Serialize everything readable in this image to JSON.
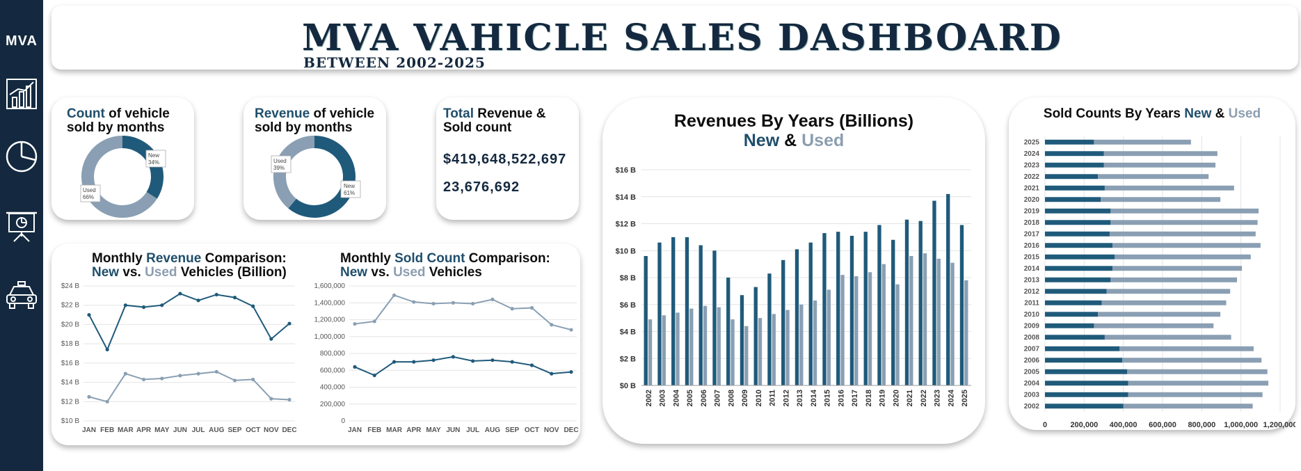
{
  "sidebar": {
    "logo": "MVA",
    "icons": [
      "bar-chart-icon",
      "pie-chart-icon",
      "presentation-icon",
      "taxi-icon"
    ]
  },
  "header": {
    "title": "MVA VAHICLE SALES DASHBOARD",
    "subtitle": "BETWEEN 2002-2025"
  },
  "kpi_count": {
    "title_a": "Count",
    "title_b": " of vehicle",
    "title_c": "sold by months",
    "new_label": "New",
    "new_pct": "34%",
    "used_label": "Used",
    "used_pct": "66%",
    "new_value": 34,
    "used_value": 66
  },
  "kpi_revenue": {
    "title_a": "Revenue",
    "title_b": " of vehicle",
    "title_c": "sold by months",
    "new_label": "New",
    "new_pct": "61%",
    "used_label": "Used",
    "used_pct": "39%",
    "new_value": 61,
    "used_value": 39
  },
  "kpi_total": {
    "title_a": "Total",
    "title_b": " Revenue &",
    "title_c": "Sold count",
    "revenue": "$419,648,522,697",
    "count": "23,676,692"
  },
  "colors": {
    "new": "#1f5a7a",
    "used": "#8a9fb3"
  },
  "chart_data": [
    {
      "id": "monthly_revenue",
      "type": "line",
      "title_a": "Monthly ",
      "title_b": "Revenue",
      "title_c": " Comparison:",
      "title_d": "New",
      "title_e": " vs. ",
      "title_f": "Used",
      "title_g": " Vehicles (Billion)",
      "categories": [
        "JAN",
        "FEB",
        "MAR",
        "APR",
        "MAY",
        "JUN",
        "JUL",
        "AUG",
        "SEP",
        "OCT",
        "NOV",
        "DEC"
      ],
      "series": [
        {
          "name": "New",
          "values": [
            21.0,
            17.4,
            22.0,
            21.8,
            22.0,
            23.2,
            22.5,
            23.1,
            22.8,
            21.9,
            18.5,
            20.1
          ]
        },
        {
          "name": "Used",
          "values": [
            12.5,
            12.0,
            14.9,
            14.3,
            14.4,
            14.7,
            14.9,
            15.1,
            14.2,
            14.3,
            12.3,
            12.2
          ]
        }
      ],
      "ylim": [
        10,
        24
      ],
      "yticks": [
        "$10 B",
        "$12 B",
        "$14 B",
        "$16 B",
        "$18 B",
        "$20 B",
        "$22 B",
        "$24 B"
      ]
    },
    {
      "id": "monthly_count",
      "type": "line",
      "title_a": "Monthly ",
      "title_b": "Sold Count",
      "title_c": " Comparison:",
      "title_d": "New",
      "title_e": " vs. ",
      "title_f": "Used",
      "title_g": " Vehicles",
      "categories": [
        "JAN",
        "FEB",
        "MAR",
        "APR",
        "MAY",
        "JUN",
        "JUL",
        "AUG",
        "SEP",
        "OCT",
        "NOV",
        "DEC"
      ],
      "series": [
        {
          "name": "New",
          "values": [
            640000,
            540000,
            700000,
            700000,
            720000,
            760000,
            710000,
            720000,
            700000,
            660000,
            560000,
            580000
          ]
        },
        {
          "name": "Used",
          "values": [
            1150000,
            1180000,
            1490000,
            1410000,
            1390000,
            1400000,
            1390000,
            1440000,
            1330000,
            1340000,
            1140000,
            1080000
          ]
        }
      ],
      "ylim": [
        0,
        1600000
      ],
      "yticks": [
        "0",
        "200,000",
        "400,000",
        "600,000",
        "800,000",
        "1,000,000",
        "1,200,000",
        "1,400,000",
        "1,600,000"
      ]
    },
    {
      "id": "revenue_years",
      "type": "bar",
      "title_a": "Revenues By Years (Billions)",
      "title_b": "New",
      "title_c": " & ",
      "title_d": "Used",
      "categories": [
        "2002",
        "2003",
        "2004",
        "2005",
        "2006",
        "2007",
        "2008",
        "2009",
        "2010",
        "2011",
        "2012",
        "2013",
        "2014",
        "2015",
        "2016",
        "2017",
        "2018",
        "2019",
        "2020",
        "2021",
        "2022",
        "2023",
        "2024",
        "2025"
      ],
      "series": [
        {
          "name": "New",
          "values": [
            9.6,
            10.6,
            11.0,
            11.0,
            10.4,
            10.0,
            8.0,
            6.7,
            7.3,
            8.3,
            9.3,
            10.1,
            10.6,
            11.3,
            11.4,
            11.1,
            11.4,
            11.9,
            10.8,
            12.3,
            12.2,
            13.7,
            14.2,
            11.9
          ]
        },
        {
          "name": "Used",
          "values": [
            4.9,
            5.2,
            5.4,
            5.7,
            5.9,
            5.8,
            4.9,
            4.4,
            5.0,
            5.3,
            5.6,
            6.0,
            6.3,
            7.1,
            8.2,
            8.1,
            8.4,
            9.0,
            7.5,
            9.6,
            9.8,
            9.4,
            9.1,
            7.8
          ]
        }
      ],
      "ylim": [
        0,
        16
      ],
      "yticks": [
        "$0 B",
        "$2 B",
        "$4 B",
        "$6 B",
        "$8 B",
        "$10 B",
        "$12 B",
        "$14 B",
        "$16 B"
      ]
    },
    {
      "id": "sold_years",
      "type": "bar-horizontal-stacked",
      "title_a": "Sold Counts By Years ",
      "title_b": "New",
      "title_c": " & ",
      "title_d": "Used",
      "categories": [
        "2025",
        "2024",
        "2023",
        "2022",
        "2021",
        "2020",
        "2019",
        "2018",
        "2017",
        "2016",
        "2015",
        "2014",
        "2013",
        "2012",
        "2011",
        "2010",
        "2009",
        "2008",
        "2007",
        "2006",
        "2005",
        "2004",
        "2003",
        "2002"
      ],
      "series": [
        {
          "name": "New",
          "values": [
            250000,
            300000,
            300000,
            270000,
            305000,
            285000,
            335000,
            335000,
            330000,
            345000,
            355000,
            345000,
            335000,
            315000,
            290000,
            270000,
            250000,
            305000,
            380000,
            395000,
            420000,
            425000,
            425000,
            400000
          ]
        },
        {
          "name": "Used",
          "values": [
            495000,
            580000,
            570000,
            565000,
            660000,
            610000,
            755000,
            750000,
            745000,
            755000,
            695000,
            660000,
            645000,
            630000,
            635000,
            625000,
            610000,
            645000,
            685000,
            710000,
            715000,
            715000,
            685000,
            660000
          ]
        }
      ],
      "xlim": [
        0,
        1200000
      ],
      "xticks": [
        "0",
        "200,000",
        "400,000",
        "600,000",
        "800,000",
        "1,000,000",
        "1,200,000"
      ]
    }
  ]
}
